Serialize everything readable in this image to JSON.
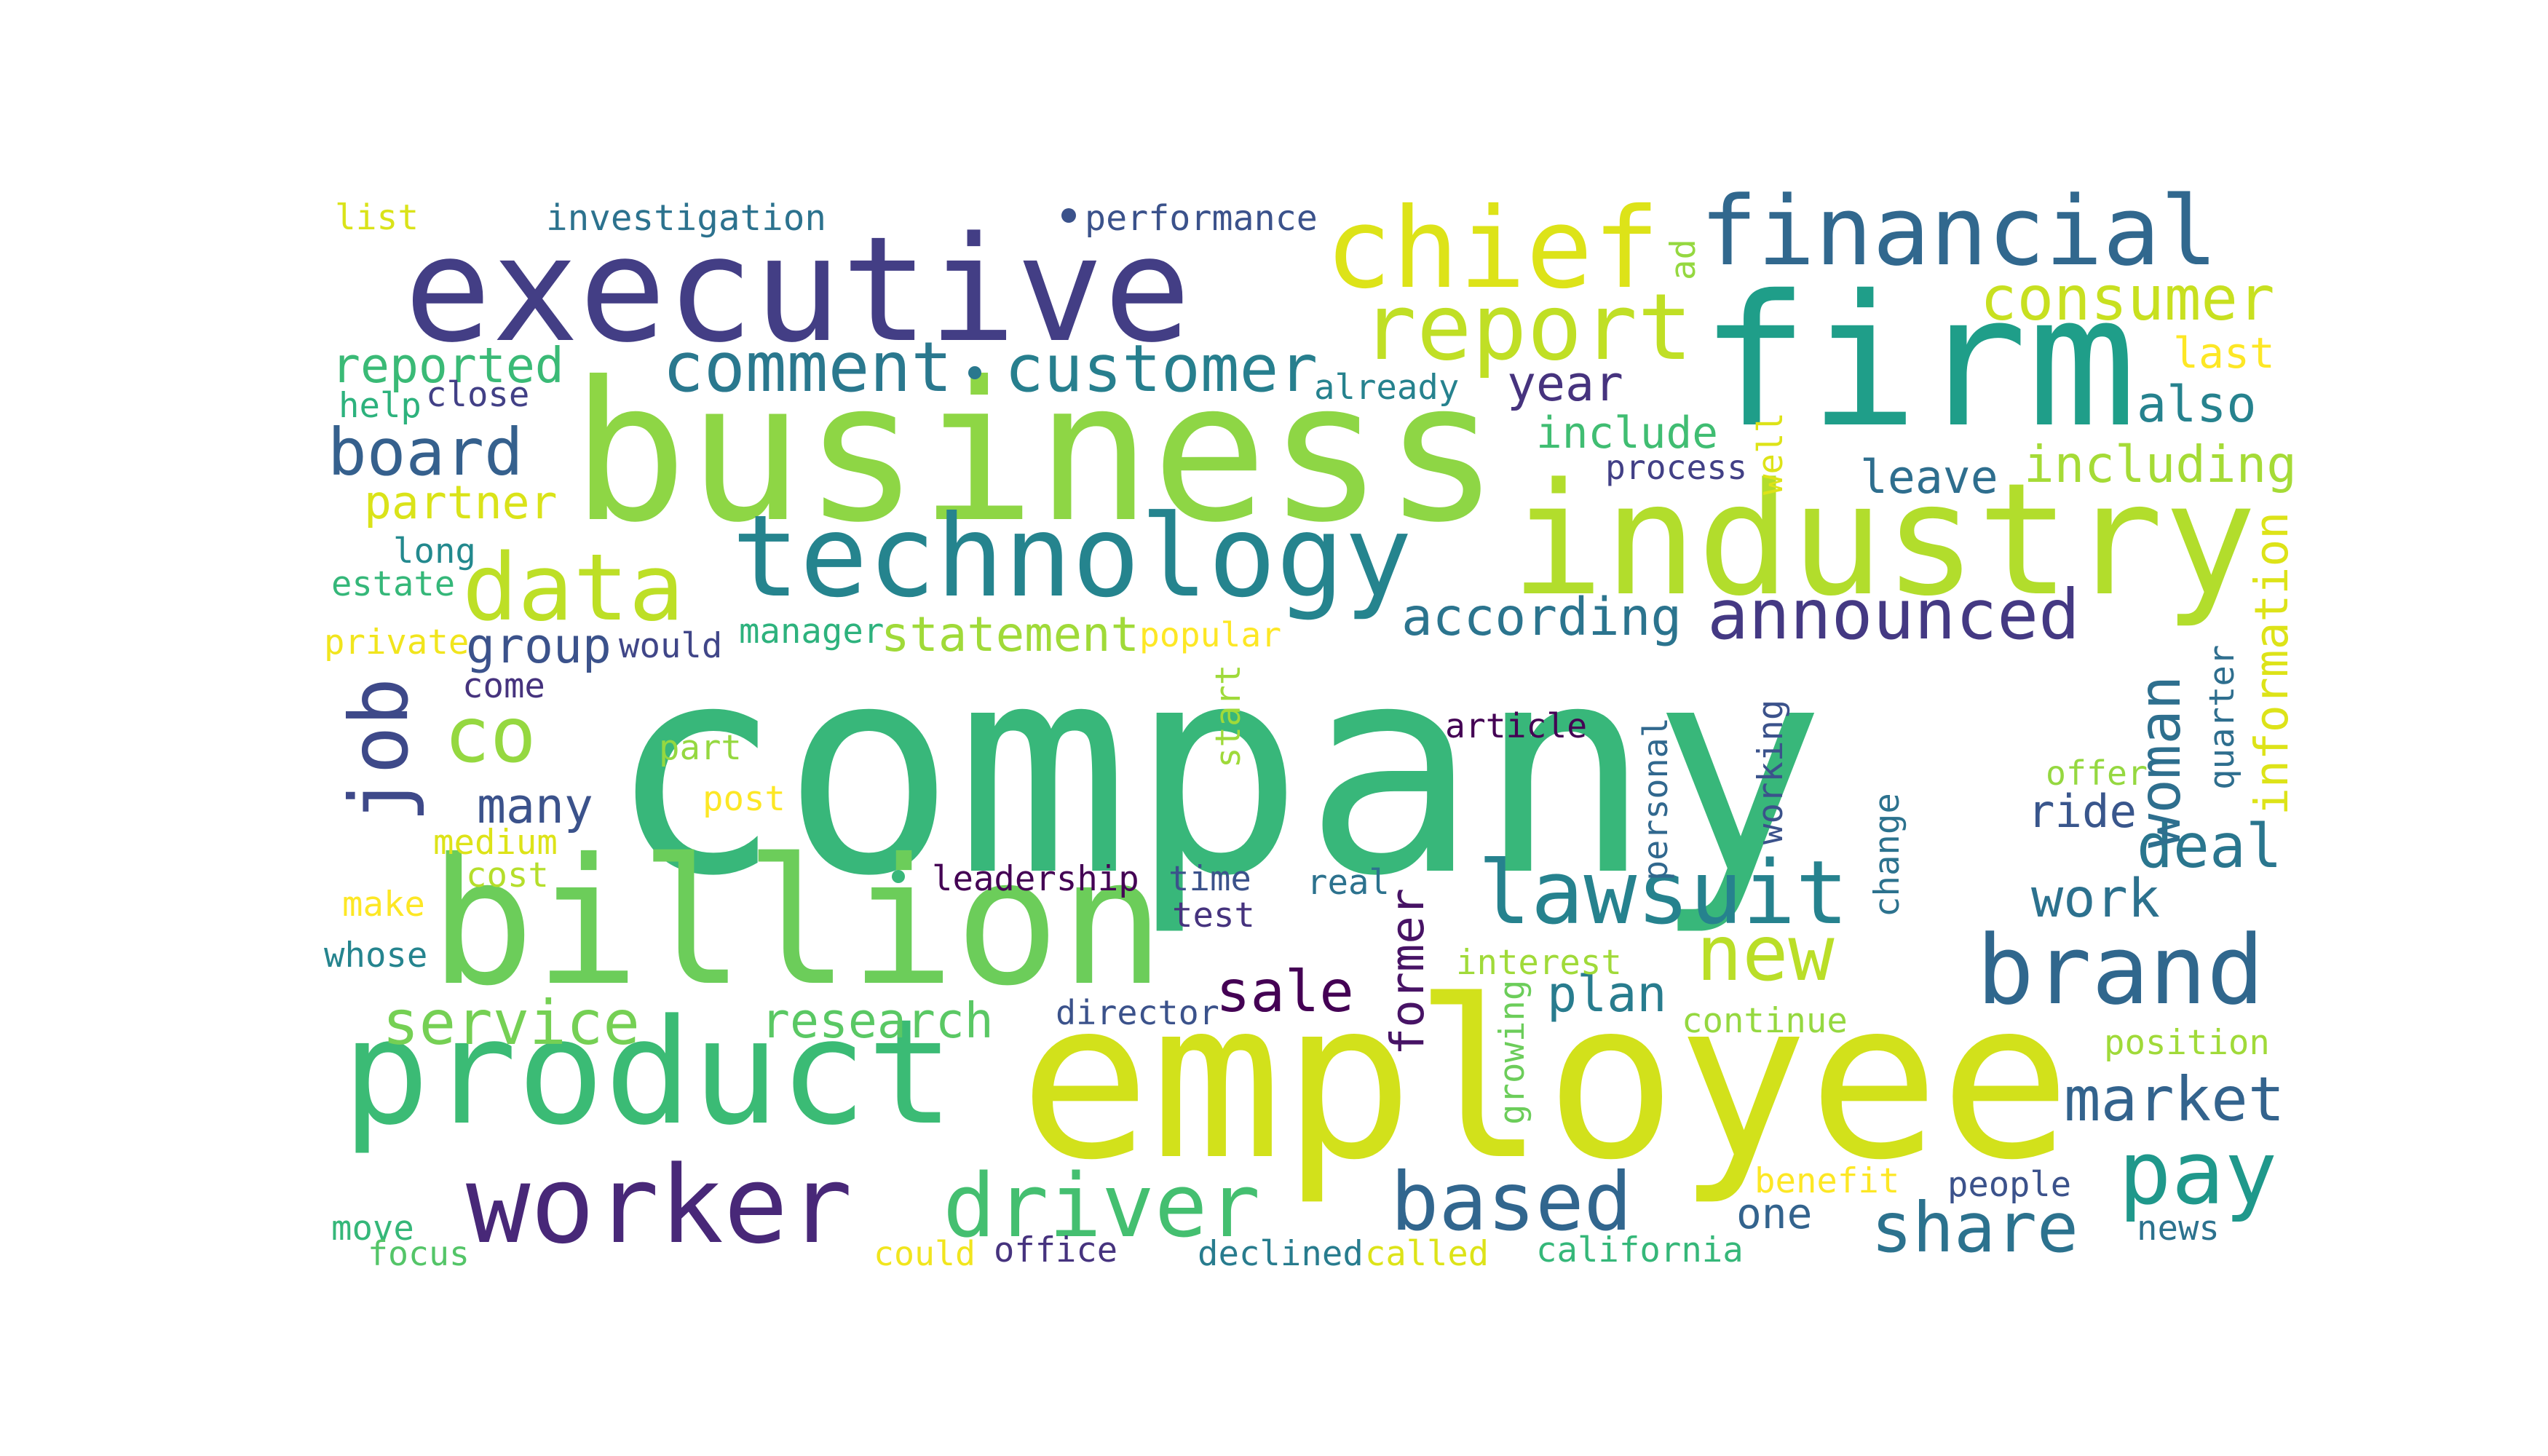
{
  "word_cloud": {
    "background": "#ffffff",
    "palette": "viridis",
    "words": [
      {
        "text": "company",
        "color": "#38b77a"
      },
      {
        "text": "employee",
        "color": "#d2e11b"
      },
      {
        "text": "business",
        "color": "#8ed645"
      },
      {
        "text": "billion",
        "color": "#6ccd5a"
      },
      {
        "text": "executive",
        "color": "#433e85"
      },
      {
        "text": "firm",
        "color": "#1f9e89"
      },
      {
        "text": "industry",
        "color": "#b2dd2c"
      },
      {
        "text": "product",
        "color": "#3bbb75"
      },
      {
        "text": "technology",
        "color": "#25848e"
      },
      {
        "text": "financial",
        "color": "#31688e"
      },
      {
        "text": "chief",
        "color": "#dde318"
      },
      {
        "text": "worker",
        "color": "#482878"
      },
      {
        "text": "brand",
        "color": "#30678d"
      },
      {
        "text": "report",
        "color": "#c0df25"
      },
      {
        "text": "lawsuit",
        "color": "#26828e"
      },
      {
        "text": "data",
        "color": "#bddf26"
      },
      {
        "text": "driver",
        "color": "#44bf70"
      },
      {
        "text": "based",
        "color": "#31668e"
      },
      {
        "text": "pay",
        "color": "#1f988b"
      },
      {
        "text": "new",
        "color": "#bade28"
      },
      {
        "text": "job",
        "color": "#3e4989"
      },
      {
        "text": "co",
        "color": "#95d840"
      },
      {
        "text": "announced",
        "color": "#443983"
      },
      {
        "text": "service",
        "color": "#75d054"
      },
      {
        "text": "customer",
        "color": "#277f8e"
      },
      {
        "text": "comment",
        "color": "#2a788e"
      },
      {
        "text": "board",
        "color": "#35608d"
      },
      {
        "text": "share",
        "color": "#2c728e"
      },
      {
        "text": "consumer",
        "color": "#c8e020"
      },
      {
        "text": "deal",
        "color": "#2a768e"
      },
      {
        "text": "market",
        "color": "#33638d"
      },
      {
        "text": "according",
        "color": "#2b748e"
      },
      {
        "text": "woman",
        "color": "#2e6f8e"
      },
      {
        "text": "research",
        "color": "#5ac864"
      },
      {
        "text": "statement",
        "color": "#a0da39"
      },
      {
        "text": "sale",
        "color": "#440154"
      },
      {
        "text": "former",
        "color": "#471365"
      },
      {
        "text": "work",
        "color": "#2c718e"
      },
      {
        "text": "including",
        "color": "#a5db36"
      },
      {
        "text": "reported",
        "color": "#3aba76"
      },
      {
        "text": "year",
        "color": "#46337e"
      },
      {
        "text": "include",
        "color": "#40bd72"
      },
      {
        "text": "plan",
        "color": "#287c8e"
      },
      {
        "text": "many",
        "color": "#3b528b"
      },
      {
        "text": "group",
        "color": "#3b528b"
      },
      {
        "text": "partner",
        "color": "#dae319"
      },
      {
        "text": "also",
        "color": "#26828e"
      },
      {
        "text": "last",
        "color": "#fde725"
      },
      {
        "text": "leave",
        "color": "#2e6e8e"
      },
      {
        "text": "ride",
        "color": "#39568c"
      },
      {
        "text": "one",
        "color": "#33638d"
      },
      {
        "text": "information",
        "color": "#dde318"
      },
      {
        "text": "investigation",
        "color": "#2c728e"
      },
      {
        "text": "performance",
        "color": "#3b528b"
      },
      {
        "text": "list",
        "color": "#dae319"
      },
      {
        "text": "ad",
        "color": "#95d840"
      },
      {
        "text": "well",
        "color": "#dde318"
      },
      {
        "text": "help",
        "color": "#2db27d"
      },
      {
        "text": "close",
        "color": "#424086"
      },
      {
        "text": "already",
        "color": "#26828e"
      },
      {
        "text": "process",
        "color": "#424086"
      },
      {
        "text": "long",
        "color": "#23898e"
      },
      {
        "text": "estate",
        "color": "#35b779"
      },
      {
        "text": "private",
        "color": "#f1e51d"
      },
      {
        "text": "would",
        "color": "#404688"
      },
      {
        "text": "manager",
        "color": "#2db27d"
      },
      {
        "text": "popular",
        "color": "#fde725"
      },
      {
        "text": "come",
        "color": "#46337e"
      },
      {
        "text": "start",
        "color": "#9fda3a"
      },
      {
        "text": "article",
        "color": "#440154"
      },
      {
        "text": "personal",
        "color": "#31688e"
      },
      {
        "text": "working",
        "color": "#3b528b"
      },
      {
        "text": "change",
        "color": "#2c728e"
      },
      {
        "text": "quarter",
        "color": "#2e6e8e"
      },
      {
        "text": "offer",
        "color": "#95d840"
      },
      {
        "text": "part",
        "color": "#95d840"
      },
      {
        "text": "post",
        "color": "#fde725"
      },
      {
        "text": "medium",
        "color": "#dde318"
      },
      {
        "text": "cost",
        "color": "#b5de2b"
      },
      {
        "text": "leadership",
        "color": "#440154"
      },
      {
        "text": "time",
        "color": "#3b528b"
      },
      {
        "text": "real",
        "color": "#2c728e"
      },
      {
        "text": "test",
        "color": "#46337e"
      },
      {
        "text": "make",
        "color": "#fde725"
      },
      {
        "text": "whose",
        "color": "#25848e"
      },
      {
        "text": "interest",
        "color": "#a0da39"
      },
      {
        "text": "growing",
        "color": "#6ccd5a"
      },
      {
        "text": "director",
        "color": "#3b528b"
      },
      {
        "text": "continue",
        "color": "#95d840"
      },
      {
        "text": "position",
        "color": "#a0da39"
      },
      {
        "text": "benefit",
        "color": "#fde725"
      },
      {
        "text": "people",
        "color": "#3b528b"
      },
      {
        "text": "move",
        "color": "#35b779"
      },
      {
        "text": "focus",
        "color": "#54c568"
      },
      {
        "text": "could",
        "color": "#f1e51d"
      },
      {
        "text": "office",
        "color": "#46337e"
      },
      {
        "text": "declined",
        "color": "#287c8e"
      },
      {
        "text": "called",
        "color": "#dde318"
      },
      {
        "text": "california",
        "color": "#35b779"
      },
      {
        "text": "news",
        "color": "#2c728e"
      }
    ]
  }
}
